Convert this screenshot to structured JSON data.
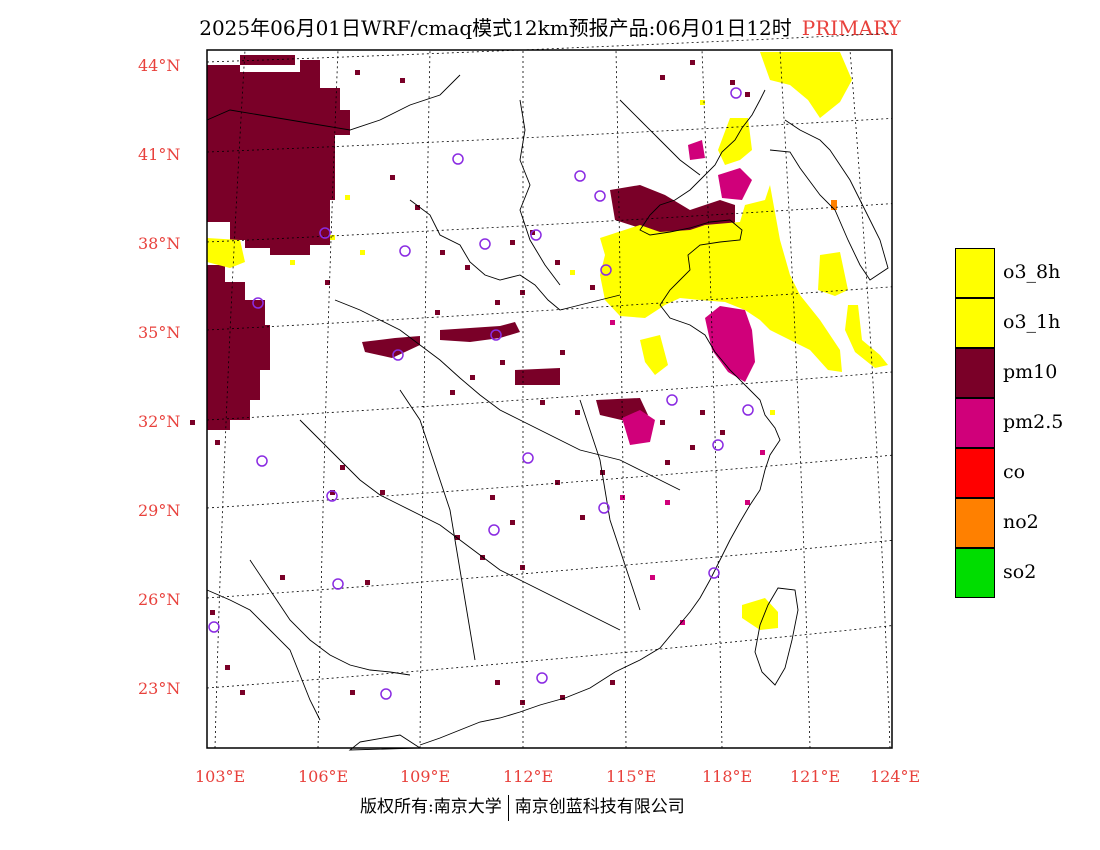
{
  "title": {
    "main": "2025年06月01日WRF/cmaq模式12km预报产品:06月01日12时",
    "tag": "PRIMARY",
    "tag_color": "#e8413c"
  },
  "axes": {
    "lat_labels": [
      "44°N",
      "41°N",
      "38°N",
      "35°N",
      "32°N",
      "29°N",
      "26°N",
      "23°N"
    ],
    "lon_labels": [
      "103°E",
      "106°E",
      "109°E",
      "112°E",
      "115°E",
      "118°E",
      "121°E",
      "124°E"
    ],
    "label_color": "#e8413c",
    "lat_range": [
      21,
      44.5
    ],
    "lon_range": [
      103,
      124
    ]
  },
  "legend": [
    {
      "label": "o3_8h",
      "color": "#ffff00"
    },
    {
      "label": "o3_1h",
      "color": "#ffff00"
    },
    {
      "label": "pm10",
      "color": "#7a0028"
    },
    {
      "label": "pm2.5",
      "color": "#d0007a"
    },
    {
      "label": "co",
      "color": "#ff0000"
    },
    {
      "label": "no2",
      "color": "#ff8000"
    },
    {
      "label": "so2",
      "color": "#00dd00"
    }
  ],
  "footer": {
    "left": "版权所有:南京大学",
    "right": "南京创蓝科技有限公司"
  },
  "colors": {
    "o3": "#ffff00",
    "pm10": "#7a0028",
    "pm25": "#d0007a",
    "no2": "#ff8000",
    "station": "#8a2be2"
  }
}
